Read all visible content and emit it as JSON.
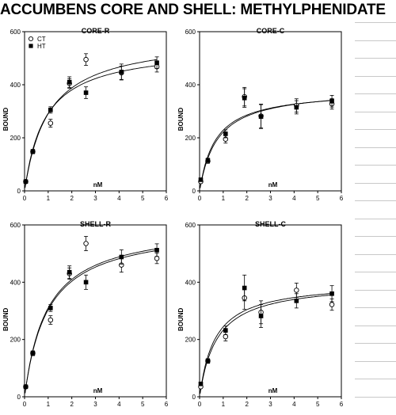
{
  "page": {
    "title": "ACCUMBENS CORE AND SHELL: METHYLPHENIDATE"
  },
  "chart_data": [
    {
      "type": "scatter",
      "title": "CORE-R",
      "xlabel": "nM",
      "ylabel": "BOUND",
      "xlim": [
        0,
        6
      ],
      "ylim": [
        0,
        600
      ],
      "xticks": [
        "0",
        "1",
        "2",
        "3",
        "4",
        "5",
        "6"
      ],
      "yticks": [
        "0",
        "200",
        "400",
        "600"
      ],
      "legend": {
        "placement": "top-left",
        "entries": [
          "CT",
          "HT"
        ]
      },
      "series": [
        {
          "name": "CT",
          "marker": "open-circle",
          "x": [
            0.05,
            0.35,
            1.1,
            1.9,
            2.6,
            4.1,
            5.6
          ],
          "y": [
            35,
            148,
            255,
            405,
            495,
            445,
            468
          ],
          "err": [
            0,
            8,
            15,
            18,
            22,
            25,
            20
          ]
        },
        {
          "name": "HT",
          "marker": "filled-square",
          "x": [
            0.05,
            0.35,
            1.1,
            1.9,
            2.6,
            4.1,
            5.6
          ],
          "y": [
            35,
            148,
            305,
            410,
            370,
            448,
            483
          ],
          "err": [
            0,
            8,
            12,
            20,
            22,
            30,
            22
          ]
        }
      ]
    },
    {
      "type": "scatter",
      "title": "CORE-C",
      "xlabel": "nM",
      "ylabel": "BOUND",
      "xlim": [
        0,
        6
      ],
      "ylim": [
        0,
        600
      ],
      "xticks": [
        "0",
        "1",
        "2",
        "3",
        "4",
        "5",
        "6"
      ],
      "yticks": [
        "0",
        "200",
        "400",
        "600"
      ],
      "series": [
        {
          "marker": "open-circle",
          "x": [
            0.05,
            0.35,
            1.1,
            1.9,
            2.6,
            4.1,
            5.6
          ],
          "y": [
            35,
            112,
            195,
            355,
            282,
            322,
            328
          ],
          "err": [
            0,
            8,
            15,
            35,
            45,
            25,
            20
          ]
        },
        {
          "marker": "filled-square",
          "x": [
            0.05,
            0.35,
            1.1,
            1.9,
            2.6,
            4.1,
            5.6
          ],
          "y": [
            42,
            115,
            215,
            350,
            280,
            315,
            338
          ],
          "err": [
            0,
            8,
            15,
            35,
            45,
            25,
            22
          ]
        }
      ]
    },
    {
      "type": "scatter",
      "title": "SHELL-R",
      "xlabel": "nM",
      "ylabel": "BOUND",
      "xlim": [
        0,
        6
      ],
      "ylim": [
        0,
        600
      ],
      "xticks": [
        "0",
        "1",
        "2",
        "3",
        "4",
        "5",
        "6"
      ],
      "yticks": [
        "0",
        "200",
        "400",
        "600"
      ],
      "series": [
        {
          "marker": "open-circle",
          "x": [
            0.05,
            0.35,
            1.1,
            1.9,
            2.6,
            4.1,
            5.6
          ],
          "y": [
            35,
            152,
            268,
            430,
            535,
            460,
            483
          ],
          "err": [
            0,
            8,
            15,
            20,
            25,
            25,
            18
          ]
        },
        {
          "marker": "filled-square",
          "x": [
            0.05,
            0.35,
            1.1,
            1.9,
            2.6,
            4.1,
            5.6
          ],
          "y": [
            35,
            152,
            310,
            435,
            400,
            488,
            512
          ],
          "err": [
            0,
            8,
            12,
            22,
            25,
            25,
            22
          ]
        }
      ]
    },
    {
      "type": "scatter",
      "title": "SHELL-C",
      "xlabel": "nM",
      "ylabel": "BOUND",
      "xlim": [
        0,
        6
      ],
      "ylim": [
        0,
        600
      ],
      "xticks": [
        "0",
        "1",
        "2",
        "3",
        "4",
        "5",
        "6"
      ],
      "yticks": [
        "0",
        "200",
        "400",
        "600"
      ],
      "series": [
        {
          "marker": "open-circle",
          "x": [
            0.05,
            0.35,
            1.1,
            1.9,
            2.6,
            4.1,
            5.6
          ],
          "y": [
            35,
            125,
            210,
            345,
            295,
            372,
            322
          ],
          "err": [
            0,
            8,
            15,
            40,
            40,
            25,
            20
          ]
        },
        {
          "marker": "filled-square",
          "x": [
            0.05,
            0.35,
            1.1,
            1.9,
            2.6,
            4.1,
            5.6
          ],
          "y": [
            45,
            125,
            232,
            380,
            282,
            335,
            360
          ],
          "err": [
            0,
            8,
            15,
            45,
            40,
            25,
            28
          ]
        }
      ]
    }
  ]
}
